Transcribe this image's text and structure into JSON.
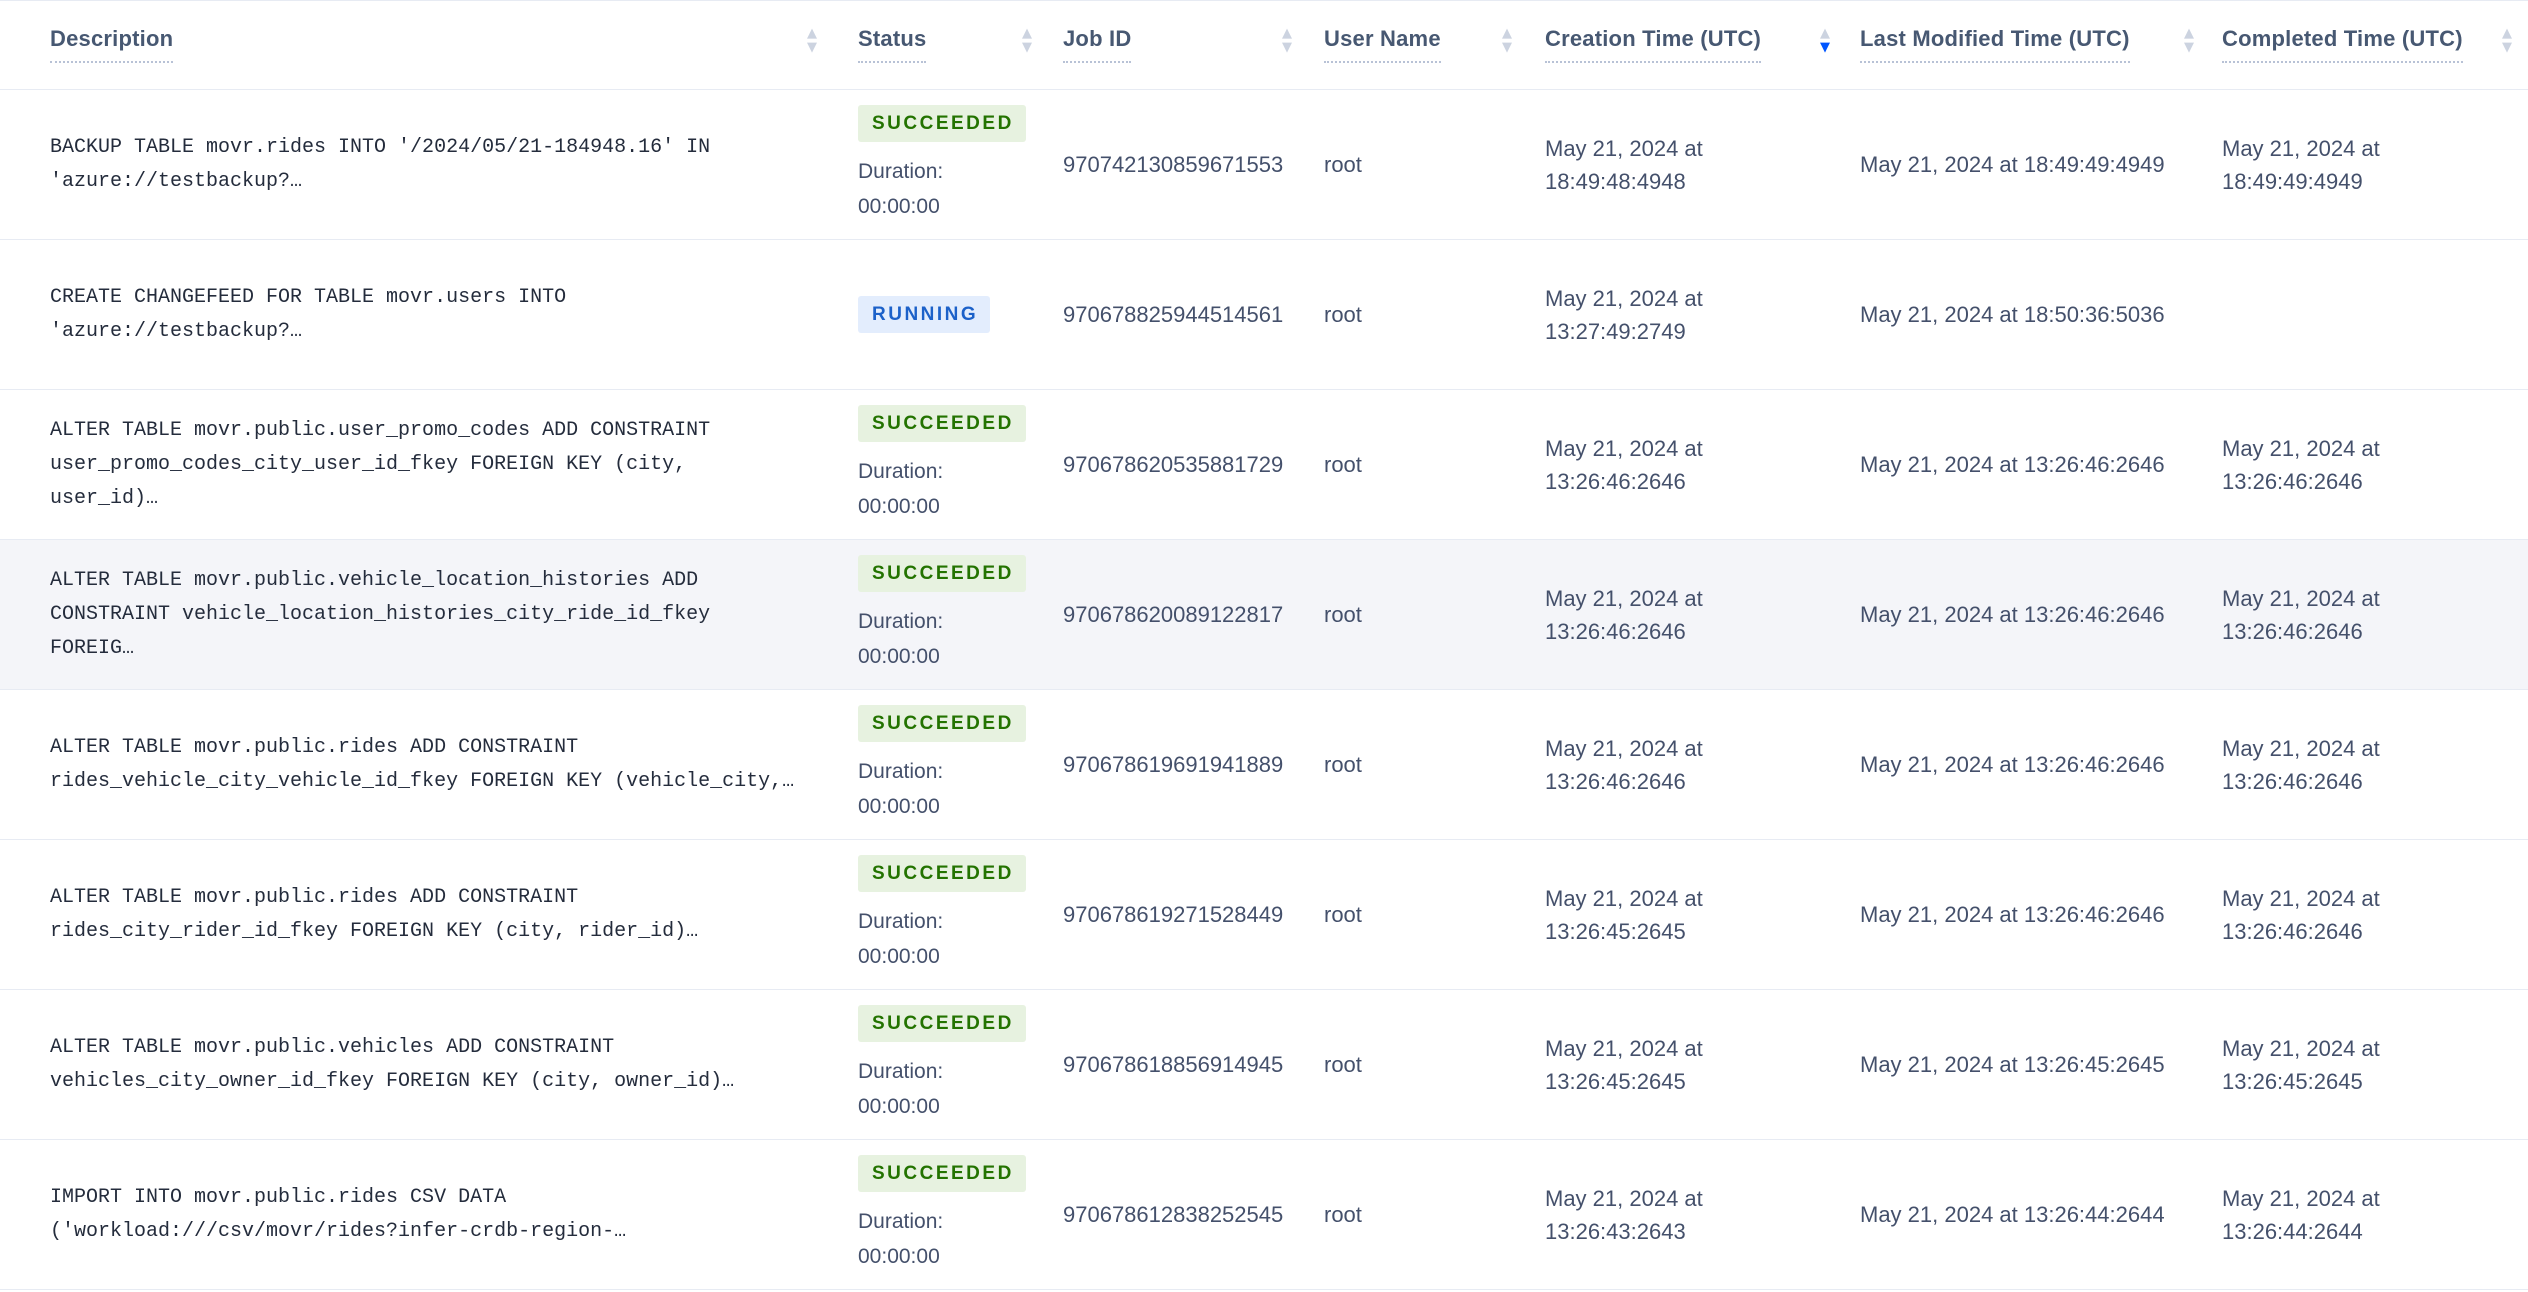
{
  "table": {
    "duration_label": "Duration:",
    "columns": [
      {
        "label": "Description",
        "sort": "none"
      },
      {
        "label": "Status",
        "sort": "none"
      },
      {
        "label": "Job ID",
        "sort": "none"
      },
      {
        "label": "User Name",
        "sort": "none"
      },
      {
        "label": "Creation Time (UTC)",
        "sort": "desc"
      },
      {
        "label": "Last Modified Time (UTC)",
        "sort": "none"
      },
      {
        "label": "Completed Time (UTC)",
        "sort": "none"
      }
    ],
    "rows": [
      {
        "description": "BACKUP TABLE movr.rides INTO '/2024/05/21-184948.16' IN\n'azure://testbackup?…",
        "status": "SUCCEEDED",
        "duration": "00:00:00",
        "job_id": "970742130859671553",
        "user_name": "root",
        "creation_time": "May 21, 2024 at\n18:49:48:4948",
        "last_modified_time": "May 21, 2024 at 18:49:49:4949",
        "completed_time": "May 21, 2024 at\n18:49:49:4949",
        "highlighted": false
      },
      {
        "description": "CREATE CHANGEFEED FOR TABLE movr.users INTO\n'azure://testbackup?…",
        "status": "RUNNING",
        "duration": null,
        "job_id": "970678825944514561",
        "user_name": "root",
        "creation_time": "May 21, 2024 at\n13:27:49:2749",
        "last_modified_time": "May 21, 2024 at 18:50:36:5036",
        "completed_time": "",
        "highlighted": false
      },
      {
        "description": "ALTER TABLE movr.public.user_promo_codes ADD CONSTRAINT\nuser_promo_codes_city_user_id_fkey FOREIGN KEY (city, user_id)…",
        "status": "SUCCEEDED",
        "duration": "00:00:00",
        "job_id": "970678620535881729",
        "user_name": "root",
        "creation_time": "May 21, 2024 at\n13:26:46:2646",
        "last_modified_time": "May 21, 2024 at 13:26:46:2646",
        "completed_time": "May 21, 2024 at\n13:26:46:2646",
        "highlighted": false
      },
      {
        "description": "ALTER TABLE movr.public.vehicle_location_histories ADD\nCONSTRAINT vehicle_location_histories_city_ride_id_fkey FOREIG…",
        "status": "SUCCEEDED",
        "duration": "00:00:00",
        "job_id": "970678620089122817",
        "user_name": "root",
        "creation_time": "May 21, 2024 at\n13:26:46:2646",
        "last_modified_time": "May 21, 2024 at 13:26:46:2646",
        "completed_time": "May 21, 2024 at\n13:26:46:2646",
        "highlighted": true
      },
      {
        "description": "ALTER TABLE movr.public.rides ADD CONSTRAINT\nrides_vehicle_city_vehicle_id_fkey FOREIGN KEY (vehicle_city,…",
        "status": "SUCCEEDED",
        "duration": "00:00:00",
        "job_id": "970678619691941889",
        "user_name": "root",
        "creation_time": "May 21, 2024 at\n13:26:46:2646",
        "last_modified_time": "May 21, 2024 at 13:26:46:2646",
        "completed_time": "May 21, 2024 at\n13:26:46:2646",
        "highlighted": false
      },
      {
        "description": "ALTER TABLE movr.public.rides ADD CONSTRAINT\nrides_city_rider_id_fkey FOREIGN KEY (city, rider_id)…",
        "status": "SUCCEEDED",
        "duration": "00:00:00",
        "job_id": "970678619271528449",
        "user_name": "root",
        "creation_time": "May 21, 2024 at\n13:26:45:2645",
        "last_modified_time": "May 21, 2024 at 13:26:46:2646",
        "completed_time": "May 21, 2024 at\n13:26:46:2646",
        "highlighted": false
      },
      {
        "description": "ALTER TABLE movr.public.vehicles ADD CONSTRAINT\nvehicles_city_owner_id_fkey FOREIGN KEY (city, owner_id)…",
        "status": "SUCCEEDED",
        "duration": "00:00:00",
        "job_id": "970678618856914945",
        "user_name": "root",
        "creation_time": "May 21, 2024 at\n13:26:45:2645",
        "last_modified_time": "May 21, 2024 at 13:26:45:2645",
        "completed_time": "May 21, 2024 at\n13:26:45:2645",
        "highlighted": false
      },
      {
        "description": "IMPORT INTO movr.public.rides CSV DATA\n('workload:///csv/movr/rides?infer-crdb-region-…",
        "status": "SUCCEEDED",
        "duration": "00:00:00",
        "job_id": "970678612838252545",
        "user_name": "root",
        "creation_time": "May 21, 2024 at\n13:26:43:2643",
        "last_modified_time": "May 21, 2024 at 13:26:44:2644",
        "completed_time": "May 21, 2024 at\n13:26:44:2644",
        "highlighted": false
      }
    ]
  },
  "colors": {
    "succeeded-bg": "#e7f2e0",
    "succeeded-text": "#237300",
    "running-bg": "#e3edfd",
    "running-text": "#1c61c9",
    "sort-active": "#0055ff",
    "row-highlight": "#f4f5f9"
  }
}
